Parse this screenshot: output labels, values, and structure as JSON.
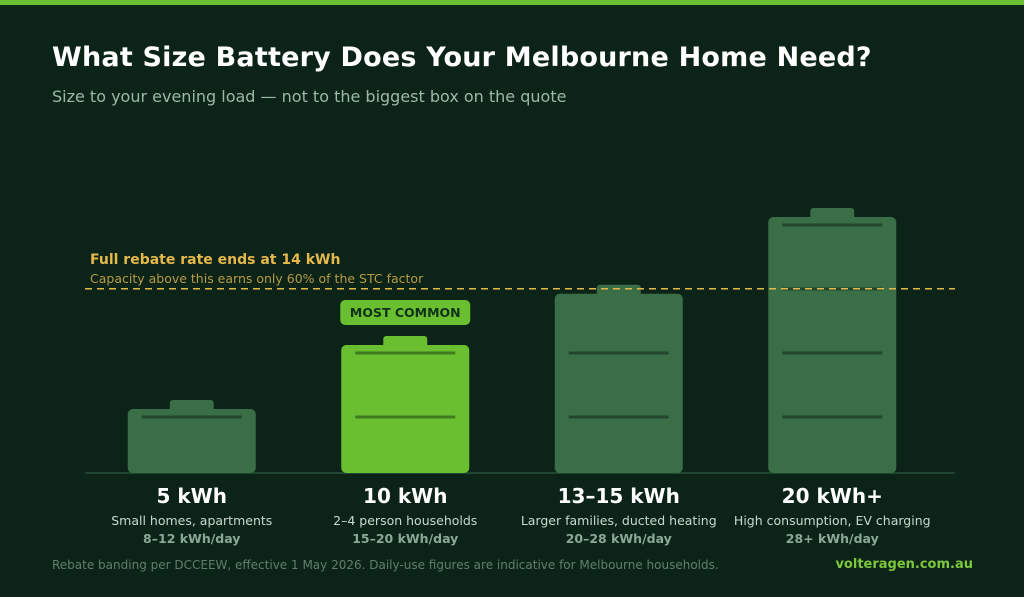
{
  "header": {
    "title": "What Size Battery Does Your Melbourne Home Need?",
    "subtitle": "Size to your evening load — not to the biggest box on the quote"
  },
  "colors": {
    "background": "#0c2418",
    "accent": "#6abf30",
    "battery": "#3a6e46",
    "battery_highlight": "#6abf30",
    "threshold": "#e6b84c"
  },
  "chart_data": {
    "type": "bar",
    "title": "What Size Battery Does Your Melbourne Home Need?",
    "subtitle": "Size to your evening load — not to the biggest box on the quote",
    "ylim": [
      0,
      20
    ],
    "grid": false,
    "threshold": {
      "value": 14,
      "title": "Full rebate rate ends at 14 kWh",
      "note": "Capacity above this earns only 60% of the STC factor"
    },
    "highlight_badge": "MOST COMMON",
    "items": [
      {
        "label": "5 kWh",
        "value": 5,
        "description": "Small homes, apartments",
        "usage": "8–12 kWh/day",
        "highlight": false
      },
      {
        "label": "10 kWh",
        "value": 10,
        "description": "2–4 person households",
        "usage": "15–20 kWh/day",
        "highlight": true
      },
      {
        "label": "13–15 kWh",
        "value": 14,
        "description": "Larger families, ducted heating",
        "usage": "20–28 kWh/day",
        "highlight": false
      },
      {
        "label": "20 kWh+",
        "value": 20,
        "description": "High consumption, EV charging",
        "usage": "28+ kWh/day",
        "highlight": false
      }
    ]
  },
  "footer": {
    "note": "Rebate banding per DCCEEW, effective 1 May 2026. Daily-use figures are indicative for Melbourne households.",
    "site": "volteragen.com.au"
  }
}
